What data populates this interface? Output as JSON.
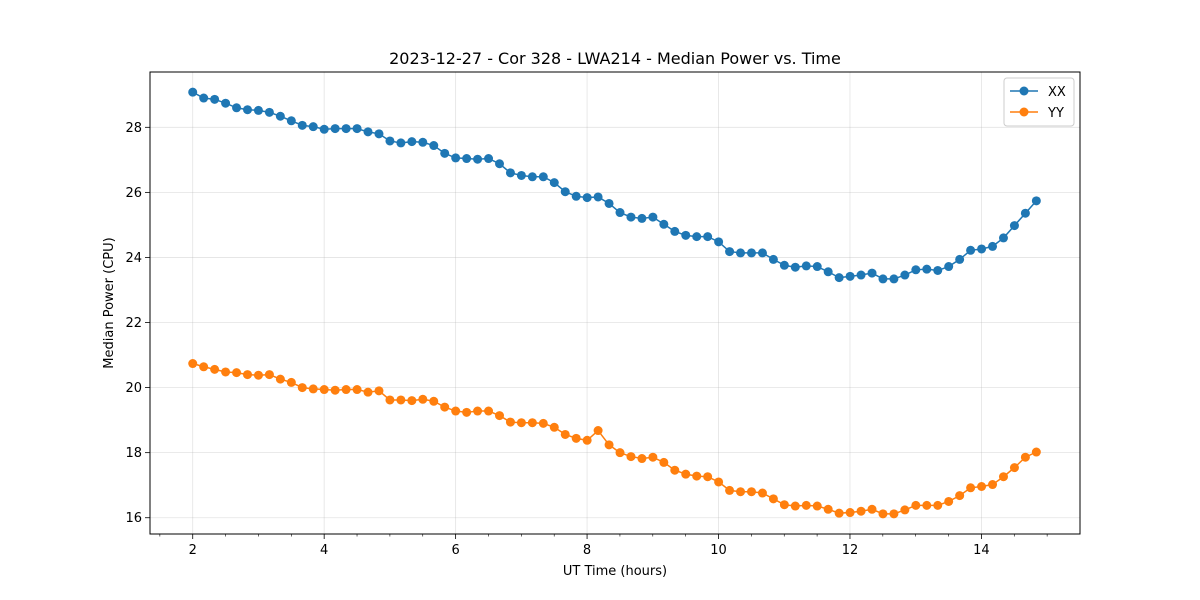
{
  "chart_data": {
    "type": "line",
    "title": "2023-12-27 - Cor 328 - LWA214 - Median Power vs. Time",
    "xlabel": "UT Time (hours)",
    "ylabel": "Median Power (CPU)",
    "xlim": [
      1.35,
      15.5
    ],
    "ylim": [
      15.5,
      29.7
    ],
    "xticks": [
      2,
      4,
      6,
      8,
      10,
      12,
      14
    ],
    "xticks_minor": [
      1.5,
      2.5,
      3,
      3.5,
      4.5,
      5,
      5.5,
      6.5,
      7,
      7.5,
      8.5,
      9,
      9.5,
      10.5,
      11,
      11.5,
      12.5,
      13,
      13.5,
      14.5,
      15
    ],
    "yticks": [
      16,
      18,
      20,
      22,
      24,
      26,
      28
    ],
    "grid": true,
    "legend_position": "top-right",
    "x_start": 2.0,
    "x_step": 0.1667,
    "series": [
      {
        "name": "XX",
        "color": "#1f77b4",
        "values": [
          29.08,
          28.9,
          28.86,
          28.74,
          28.6,
          28.54,
          28.52,
          28.46,
          28.34,
          28.2,
          28.06,
          28.02,
          27.94,
          27.96,
          27.96,
          27.96,
          27.86,
          27.8,
          27.58,
          27.52,
          27.56,
          27.54,
          27.44,
          27.2,
          27.06,
          27.04,
          27.02,
          27.04,
          26.88,
          26.6,
          26.52,
          26.48,
          26.48,
          26.3,
          26.02,
          25.88,
          25.84,
          25.86,
          25.66,
          25.38,
          25.24,
          25.2,
          25.24,
          25.02,
          24.8,
          24.68,
          24.64,
          24.64,
          24.48,
          24.18,
          24.14,
          24.14,
          24.14,
          23.94,
          23.76,
          23.7,
          23.74,
          23.72,
          23.56,
          23.38,
          23.42,
          23.46,
          23.52,
          23.34,
          23.34,
          23.46,
          23.62,
          23.64,
          23.6,
          23.72,
          23.94,
          24.22,
          24.26,
          24.34,
          24.6,
          24.98,
          25.36,
          25.74
        ]
      },
      {
        "name": "YY",
        "color": "#ff7f0e",
        "values": [
          20.74,
          20.64,
          20.56,
          20.48,
          20.46,
          20.4,
          20.38,
          20.4,
          20.26,
          20.16,
          20.0,
          19.96,
          19.94,
          19.92,
          19.94,
          19.94,
          19.86,
          19.9,
          19.62,
          19.62,
          19.6,
          19.64,
          19.58,
          19.4,
          19.28,
          19.24,
          19.28,
          19.28,
          19.14,
          18.94,
          18.92,
          18.92,
          18.9,
          18.78,
          18.56,
          18.44,
          18.38,
          18.68,
          18.24,
          18.0,
          17.88,
          17.82,
          17.86,
          17.7,
          17.46,
          17.34,
          17.28,
          17.26,
          17.1,
          16.84,
          16.8,
          16.8,
          16.76,
          16.58,
          16.4,
          16.36,
          16.38,
          16.36,
          16.26,
          16.14,
          16.16,
          16.2,
          16.26,
          16.12,
          16.12,
          16.24,
          16.38,
          16.38,
          16.38,
          16.5,
          16.68,
          16.92,
          16.96,
          17.02,
          17.26,
          17.54,
          17.86,
          18.02
        ]
      }
    ]
  }
}
